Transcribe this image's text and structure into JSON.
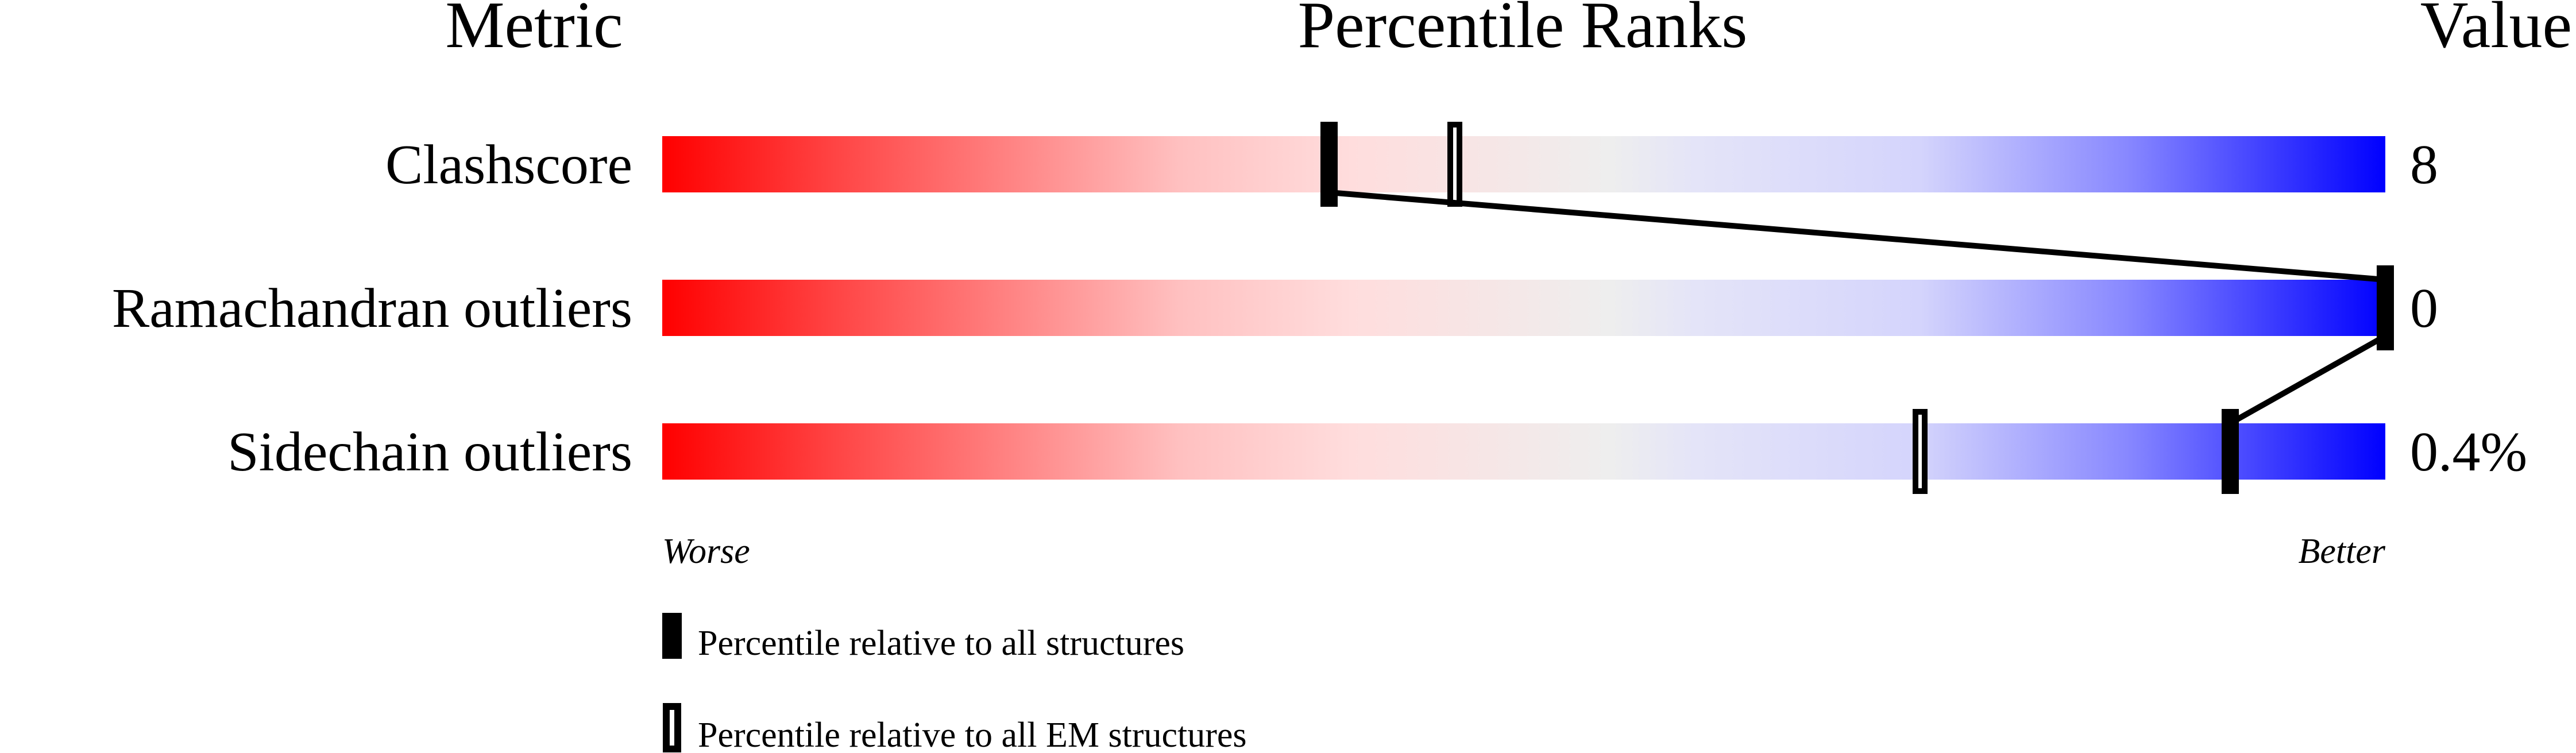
{
  "chart_data": {
    "type": "percentile-slider",
    "headers": {
      "metric": "Metric",
      "ranks": "Percentile Ranks",
      "value": "Value"
    },
    "xrange": [
      0,
      100
    ],
    "gradient_colors": [
      "#ff0000",
      "#ffdddd",
      "#eeeeee",
      "#ddddff",
      "#0000ff"
    ],
    "rows": [
      {
        "metric": "Clashscore",
        "value": "8",
        "percentile_all": 38.7,
        "percentile_em": 46
      },
      {
        "metric": "Ramachandran outliers",
        "value": "0",
        "percentile_all": 100,
        "percentile_em": null
      },
      {
        "metric": "Sidechain outliers",
        "value": "0.4%",
        "percentile_all": 91,
        "percentile_em": 73
      }
    ],
    "axis": {
      "left": "Worse",
      "right": "Better"
    },
    "legend": {
      "all": "Percentile relative to all structures",
      "em": "Percentile relative to all EM structures"
    }
  }
}
